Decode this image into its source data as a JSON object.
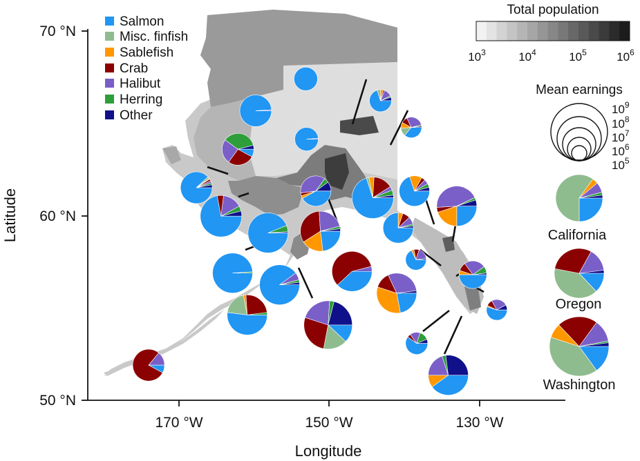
{
  "chart_data": {
    "type": "pie",
    "xlabel": "Longitude",
    "ylabel": "Latitude",
    "x_ticks": [
      "170 °W",
      "150 °W",
      "130 °W"
    ],
    "y_ticks": [
      "70 °N",
      "60 °N",
      "50 °N"
    ],
    "xlim": [
      -182,
      -120
    ],
    "ylim": [
      50,
      71
    ],
    "categories": [
      "Salmon",
      "Misc. finfish",
      "Sablefish",
      "Crab",
      "Halibut",
      "Herring",
      "Other"
    ],
    "colors": {
      "Salmon": "#2196f3",
      "Misc. finfish": "#8fbc8f",
      "Sablefish": "#ff9800",
      "Crab": "#8b0000",
      "Halibut": "#7b5fc8",
      "Herring": "#2e9e3a",
      "Other": "#10108a"
    },
    "colorbar": {
      "title": "Total population",
      "ticks": [
        "10",
        "10",
        "10",
        "10"
      ],
      "tick_exponents": [
        "3",
        "4",
        "5",
        "6"
      ]
    },
    "size_legend": {
      "title": "Mean earnings",
      "ticks": [
        "10",
        "10",
        "10",
        "10",
        "10"
      ],
      "tick_exponents": [
        "9",
        "8",
        "7",
        "6",
        "5"
      ]
    },
    "alaska_pies": [
      {
        "lon": -153.7,
        "lat": 69.2,
        "values": [
          100,
          0,
          0,
          0,
          0,
          0,
          0
        ]
      },
      {
        "lon": -160.2,
        "lat": 67.3,
        "values": [
          99,
          0,
          0,
          0,
          1,
          0,
          0
        ]
      },
      {
        "lon": -153.6,
        "lat": 65.6,
        "values": [
          99,
          0,
          0,
          0,
          1,
          0,
          0
        ]
      },
      {
        "lon": -144.0,
        "lat": 67.9,
        "values": [
          70,
          5,
          4,
          2,
          12,
          2,
          5
        ]
      },
      {
        "lon": -162.5,
        "lat": 65.0,
        "values": [
          8,
          0,
          0,
          27,
          25,
          36,
          4
        ]
      },
      {
        "lon": -140.0,
        "lat": 66.3,
        "values": [
          36,
          13,
          9,
          10,
          28,
          2,
          2
        ]
      },
      {
        "lon": -167.9,
        "lat": 62.7,
        "values": [
          88,
          2,
          1,
          2,
          2,
          2,
          3
        ]
      },
      {
        "lon": -152.4,
        "lat": 62.5,
        "values": [
          42,
          0,
          3,
          3,
          37,
          5,
          10
        ]
      },
      {
        "lon": -145.0,
        "lat": 62.1,
        "values": [
          70,
          2,
          4,
          15,
          3,
          4,
          2
        ]
      },
      {
        "lon": -139.6,
        "lat": 62.5,
        "values": [
          70,
          0,
          13,
          4,
          5,
          4,
          4
        ]
      },
      {
        "lon": -134.1,
        "lat": 61.6,
        "values": [
          25,
          0,
          20,
          4,
          44,
          2,
          5
        ]
      },
      {
        "lon": -164.7,
        "lat": 61.0,
        "values": [
          72,
          0,
          0,
          5,
          15,
          4,
          4
        ]
      },
      {
        "lon": -158.6,
        "lat": 60.0,
        "values": [
          94,
          0,
          0,
          0,
          0,
          5,
          1
        ]
      },
      {
        "lon": -151.8,
        "lat": 60.1,
        "values": [
          23,
          0,
          18,
          33,
          22,
          2,
          2
        ]
      },
      {
        "lon": -141.7,
        "lat": 60.3,
        "values": [
          75,
          0,
          5,
          8,
          8,
          2,
          2
        ]
      },
      {
        "lon": -139.4,
        "lat": 58.4,
        "values": [
          68,
          0,
          4,
          8,
          18,
          0,
          2
        ]
      },
      {
        "lon": -163.2,
        "lat": 57.6,
        "values": [
          99,
          0,
          0,
          0,
          0,
          1,
          0
        ]
      },
      {
        "lon": -147.7,
        "lat": 57.7,
        "values": [
          38,
          0,
          0,
          58,
          4,
          0,
          0
        ]
      },
      {
        "lon": -157.1,
        "lat": 56.9,
        "values": [
          90,
          0,
          0,
          0,
          6,
          2,
          2
        ]
      },
      {
        "lon": -132.0,
        "lat": 57.5,
        "values": [
          50,
          0,
          5,
          10,
          25,
          8,
          2
        ]
      },
      {
        "lon": -141.9,
        "lat": 56.4,
        "values": [
          22,
          0,
          33,
          13,
          30,
          0,
          2
        ]
      },
      {
        "lon": -128.9,
        "lat": 55.4,
        "values": [
          55,
          0,
          2,
          10,
          25,
          0,
          8
        ]
      },
      {
        "lon": -161.3,
        "lat": 55.1,
        "values": [
          52,
          20,
          2,
          24,
          0,
          2,
          0
        ]
      },
      {
        "lon": -150.8,
        "lat": 54.5,
        "values": [
          12,
          16,
          0,
          27,
          21,
          3,
          21
        ]
      },
      {
        "lon": -139.3,
        "lat": 53.4,
        "values": [
          60,
          0,
          0,
          5,
          15,
          14,
          6
        ]
      },
      {
        "lon": -135.2,
        "lat": 51.5,
        "values": [
          40,
          0,
          10,
          0,
          20,
          3,
          27
        ]
      },
      {
        "lon": -174.1,
        "lat": 52.1,
        "values": [
          8,
          0,
          0,
          78,
          14,
          0,
          0
        ]
      }
    ],
    "state_pies": [
      {
        "label": "California",
        "values": [
          25,
          60,
          4,
          0,
          7,
          2,
          2
        ]
      },
      {
        "label": "Oregon",
        "values": [
          13,
          40,
          0,
          30,
          15,
          0,
          2
        ]
      },
      {
        "label": "Washington",
        "values": [
          15,
          40,
          8,
          22,
          12,
          1,
          2
        ]
      }
    ]
  }
}
